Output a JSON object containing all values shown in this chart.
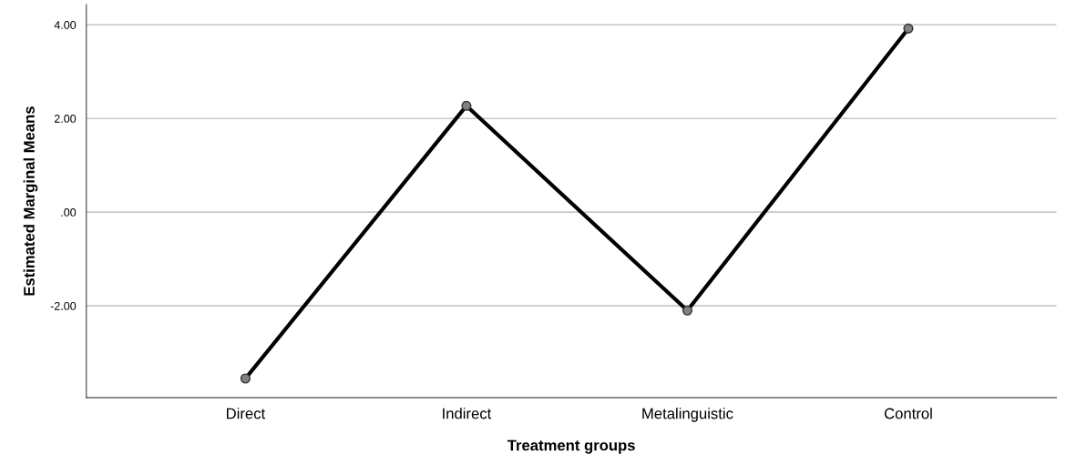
{
  "chart_data": {
    "type": "line",
    "xlabel": "Treatment groups",
    "ylabel": "Estimated Marginal Means",
    "categories": [
      "Direct",
      "Indirect",
      "Metalinguistic",
      "Control"
    ],
    "series": [
      {
        "color": "#000000",
        "values": [
          -3.55,
          2.27,
          -2.1,
          3.92
        ]
      }
    ],
    "ylim": [
      -3.96,
      4.43
    ],
    "yticks": [
      {
        "value": -2,
        "label": "-2.00"
      },
      {
        "value": 0,
        "label": ".00"
      },
      {
        "value": 2,
        "label": "2.00"
      },
      {
        "value": 4,
        "label": "4.00"
      }
    ],
    "grid": "y",
    "marker": "circle",
    "line_style": "solid"
  }
}
